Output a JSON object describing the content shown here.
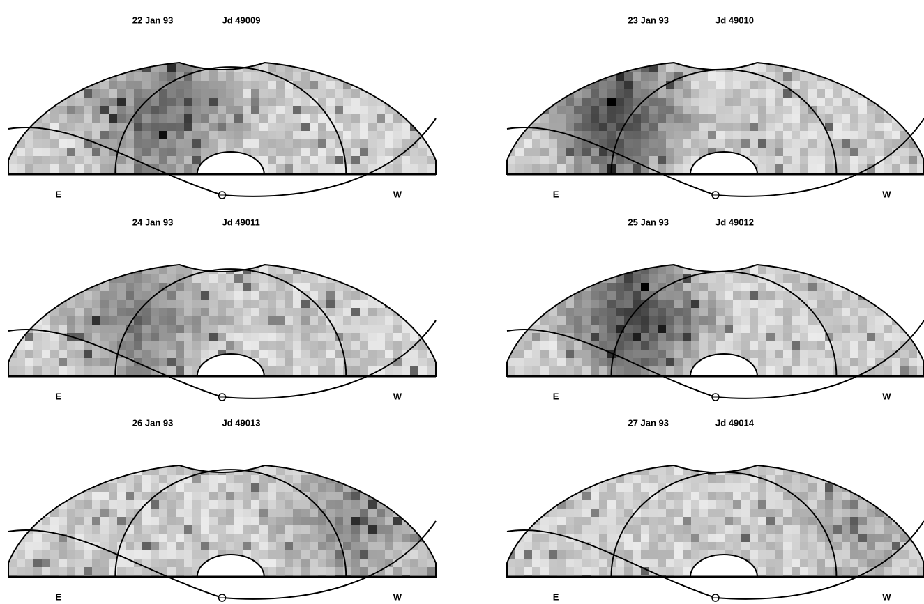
{
  "panels": [
    {
      "date": "22 Jan 93",
      "jd": "Jd 49009",
      "east": "E",
      "west": "W"
    },
    {
      "date": "23 Jan 93",
      "jd": "Jd 49010",
      "east": "E",
      "west": "W"
    },
    {
      "date": "24 Jan 93",
      "jd": "Jd 49011",
      "east": "E",
      "west": "W"
    },
    {
      "date": "25 Jan 93",
      "jd": "Jd 49012",
      "east": "E",
      "west": "W"
    },
    {
      "date": "26 Jan 93",
      "jd": "Jd 49013",
      "east": "E",
      "west": "W"
    },
    {
      "date": "27 Jan 93",
      "jd": "Jd 49014",
      "east": "E",
      "west": "W"
    }
  ]
}
